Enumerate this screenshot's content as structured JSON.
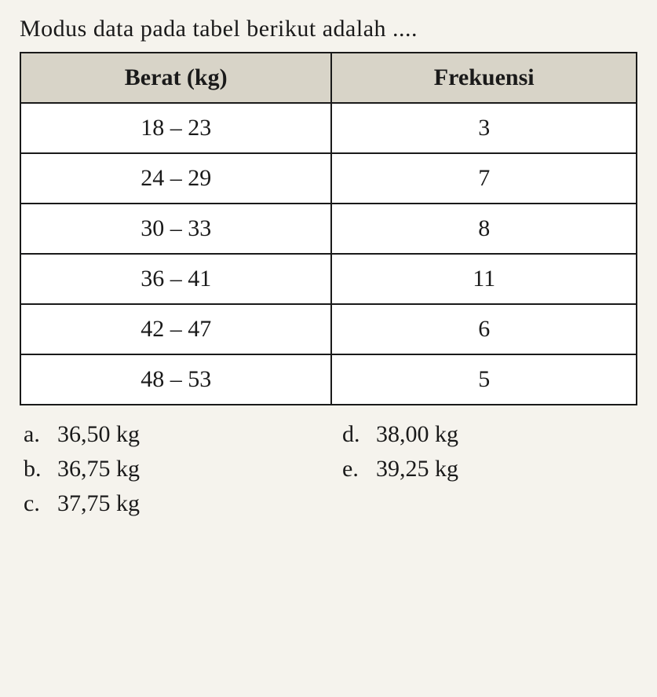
{
  "question": "Modus data pada tabel berikut adalah ....",
  "table": {
    "columns": [
      "Berat (kg)",
      "Frekuensi"
    ],
    "rows": [
      [
        "18 – 23",
        "3"
      ],
      [
        "24 – 29",
        "7"
      ],
      [
        "30 – 33",
        "8"
      ],
      [
        "36 – 41",
        "11"
      ],
      [
        "42 – 47",
        "6"
      ],
      [
        "48 – 53",
        "5"
      ]
    ],
    "header_bg": "#d8d4c8",
    "cell_bg": "#ffffff",
    "border_color": "#1a1a1a",
    "font_size": 30
  },
  "options": {
    "a": {
      "label": "a.",
      "text": "36,50 kg"
    },
    "b": {
      "label": "b.",
      "text": "36,75 kg"
    },
    "c": {
      "label": "c.",
      "text": "37,75 kg"
    },
    "d": {
      "label": "d.",
      "text": "38,00 kg"
    },
    "e": {
      "label": "e.",
      "text": "39,25 kg"
    }
  },
  "style": {
    "background_color": "#f5f3ed",
    "text_color": "#1a1a1a",
    "font_family": "Georgia, Times New Roman, serif"
  }
}
